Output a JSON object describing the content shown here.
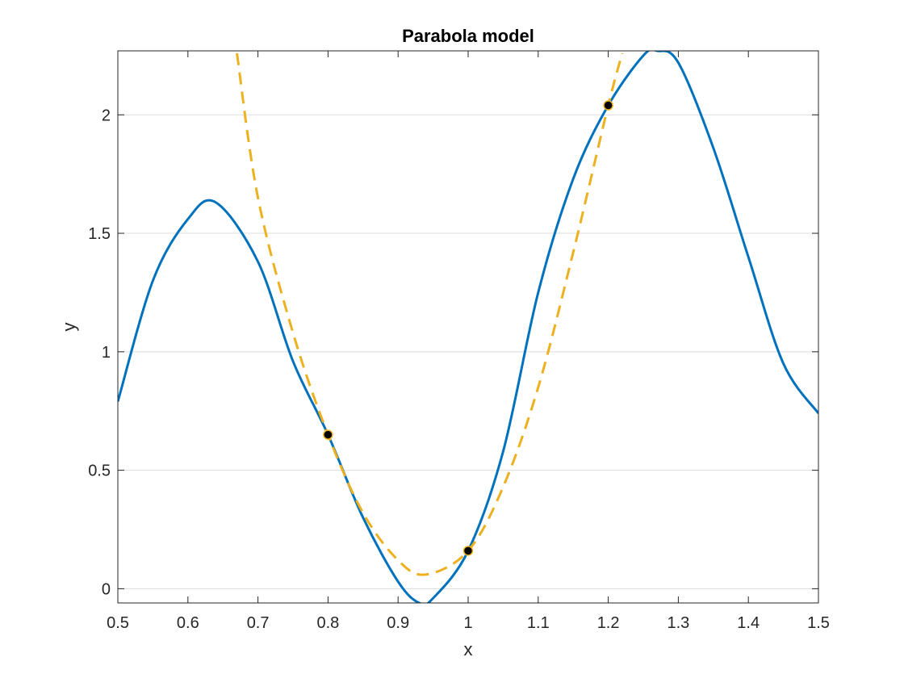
{
  "chart_data": {
    "type": "line",
    "title": "Parabola model",
    "xlabel": "x",
    "ylabel": "y",
    "xlim": [
      0.5,
      1.5
    ],
    "ylim": [
      -0.06,
      2.27
    ],
    "grid": "horizontal",
    "x_ticks": [
      "0.5",
      "0.6",
      "0.7",
      "0.8",
      "0.9",
      "1",
      "1.1",
      "1.2",
      "1.3",
      "1.4",
      "1.5"
    ],
    "y_ticks": [
      "0",
      "0.5",
      "1",
      "1.5",
      "2"
    ],
    "colors": {
      "function": "#0072BD",
      "model": "#EDB120",
      "points": "#000000",
      "axes": "#262626",
      "grid": "#dcdcdc"
    },
    "series": [
      {
        "style": "solid",
        "x": [
          0.5,
          0.55,
          0.6,
          0.64,
          0.7,
          0.75,
          0.8,
          0.85,
          0.9,
          0.93,
          0.95,
          1.0,
          1.05,
          1.1,
          1.15,
          1.2,
          1.25,
          1.27,
          1.3,
          1.35,
          1.4,
          1.45,
          1.5
        ],
        "y": [
          0.79,
          1.3,
          1.56,
          1.63,
          1.38,
          0.96,
          0.65,
          0.3,
          0.03,
          -0.06,
          -0.04,
          0.16,
          0.58,
          1.25,
          1.73,
          2.04,
          2.25,
          2.27,
          2.22,
          1.86,
          1.4,
          0.95,
          0.74
        ]
      },
      {
        "style": "dashed",
        "x": [
          0.67,
          0.7,
          0.75,
          0.8,
          0.85,
          0.9,
          0.94,
          1.0,
          1.05,
          1.1,
          1.15,
          1.2,
          1.22
        ],
        "y": [
          2.26,
          1.65,
          1.08,
          0.65,
          0.32,
          0.12,
          0.06,
          0.16,
          0.43,
          0.85,
          1.42,
          2.04,
          2.26
        ]
      },
      {
        "style": "points",
        "x": [
          0.8,
          1.0,
          1.2
        ],
        "y": [
          0.65,
          0.16,
          2.04
        ]
      }
    ]
  }
}
